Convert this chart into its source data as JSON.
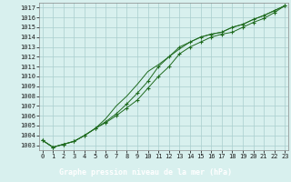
{
  "title": "Graphe pression niveau de la mer (hPa)",
  "hours": [
    0,
    1,
    2,
    3,
    4,
    5,
    6,
    7,
    8,
    9,
    10,
    11,
    12,
    13,
    14,
    15,
    16,
    17,
    18,
    19,
    20,
    21,
    22,
    23
  ],
  "line1": [
    1003.5,
    1002.8,
    1003.1,
    1003.4,
    1004.0,
    1004.7,
    1005.3,
    1006.0,
    1006.8,
    1007.6,
    1008.8,
    1010.0,
    1011.0,
    1012.3,
    1013.0,
    1013.5,
    1014.0,
    1014.3,
    1014.5,
    1015.0,
    1015.5,
    1015.9,
    1016.5,
    1017.2
  ],
  "line2": [
    1003.5,
    1002.8,
    1003.1,
    1003.4,
    1004.0,
    1004.7,
    1005.4,
    1006.2,
    1007.2,
    1008.3,
    1009.5,
    1011.0,
    1012.0,
    1013.0,
    1013.5,
    1014.0,
    1014.3,
    1014.5,
    1015.0,
    1015.3,
    1015.8,
    1016.2,
    1016.7,
    1017.2
  ],
  "line3": [
    1003.5,
    1002.8,
    1003.1,
    1003.4,
    1004.0,
    1004.7,
    1005.7,
    1007.0,
    1008.0,
    1009.2,
    1010.5,
    1011.2,
    1012.0,
    1012.8,
    1013.5,
    1014.0,
    1014.3,
    1014.5,
    1015.0,
    1015.3,
    1015.8,
    1016.2,
    1016.7,
    1017.2
  ],
  "ylim": [
    1002.5,
    1017.5
  ],
  "yticks": [
    1003,
    1004,
    1005,
    1006,
    1007,
    1008,
    1009,
    1010,
    1011,
    1012,
    1013,
    1014,
    1015,
    1016,
    1017
  ],
  "line_color": "#1f6b1f",
  "bg_color": "#d8f0ee",
  "grid_color": "#aacece",
  "title_bg": "#1f6b1f",
  "title_fg": "#ffffff",
  "title_fontsize": 6.0,
  "tick_fontsize": 5.0
}
